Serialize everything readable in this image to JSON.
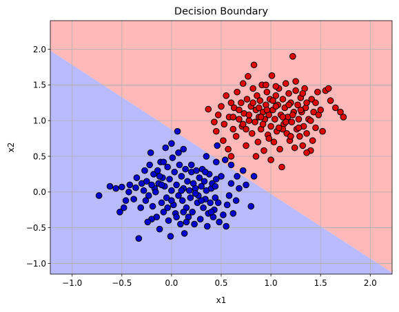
{
  "chart_data": {
    "type": "scatter",
    "title": "Decision Boundary",
    "xlabel": "x1",
    "ylabel": "x2",
    "xlim": [
      -1.22,
      2.22
    ],
    "ylim": [
      -1.15,
      2.4
    ],
    "xticks": [
      -1.0,
      -0.5,
      0.0,
      0.5,
      1.0,
      1.5,
      2.0
    ],
    "yticks": [
      -1.0,
      -0.5,
      0.0,
      0.5,
      1.0,
      1.5,
      2.0
    ],
    "xtick_labels": [
      "−1.0",
      "−0.5",
      "0.0",
      "0.5",
      "1.0",
      "1.5",
      "2.0"
    ],
    "ytick_labels": [
      "−1.0",
      "−0.5",
      "0.0",
      "0.5",
      "1.0",
      "1.5",
      "2.0"
    ],
    "grid": true,
    "decision_boundary": {
      "description": "linear boundary separating two classes",
      "x": [
        -1.22,
        2.22
      ],
      "y": [
        1.98,
        -1.13
      ],
      "region_above_color": "#ffb9b9",
      "region_below_color": "#babafe"
    },
    "series": [
      {
        "color": "#0000d0",
        "points": [
          [
            -0.73,
            -0.05
          ],
          [
            -0.62,
            0.08
          ],
          [
            -0.56,
            0.05
          ],
          [
            -0.52,
            -0.28
          ],
          [
            -0.5,
            0.07
          ],
          [
            -0.46,
            -0.12
          ],
          [
            -0.43,
            0.0
          ],
          [
            -0.42,
            0.1
          ],
          [
            -0.38,
            -0.1
          ],
          [
            -0.35,
            0.2
          ],
          [
            -0.33,
            -0.65
          ],
          [
            -0.31,
            -0.22
          ],
          [
            -0.3,
            0.12
          ],
          [
            -0.28,
            0.02
          ],
          [
            -0.27,
            0.3
          ],
          [
            -0.25,
            0.15
          ],
          [
            -0.23,
            -0.05
          ],
          [
            -0.22,
            0.38
          ],
          [
            -0.21,
            0.55
          ],
          [
            -0.19,
            -0.2
          ],
          [
            -0.18,
            0.25
          ],
          [
            -0.17,
            0.05
          ],
          [
            -0.15,
            -0.35
          ],
          [
            -0.14,
            0.3
          ],
          [
            -0.13,
            0.12
          ],
          [
            -0.12,
            -0.52
          ],
          [
            -0.11,
            0.42
          ],
          [
            -0.1,
            -0.15
          ],
          [
            -0.09,
            0.2
          ],
          [
            -0.08,
            -0.28
          ],
          [
            -0.07,
            0.08
          ],
          [
            -0.06,
            0.62
          ],
          [
            -0.05,
            -0.08
          ],
          [
            -0.04,
            0.35
          ],
          [
            -0.03,
            -0.4
          ],
          [
            -0.02,
            0.18
          ],
          [
            -0.01,
            -0.62
          ],
          [
            0.0,
            0.02
          ],
          [
            0.01,
            0.48
          ],
          [
            0.02,
            -0.18
          ],
          [
            0.03,
            0.28
          ],
          [
            0.04,
            -0.3
          ],
          [
            0.05,
            0.1
          ],
          [
            0.06,
            0.85
          ],
          [
            0.07,
            -0.05
          ],
          [
            0.08,
            0.38
          ],
          [
            0.09,
            -0.45
          ],
          [
            0.1,
            0.22
          ],
          [
            0.11,
            -0.12
          ],
          [
            0.12,
            0.05
          ],
          [
            0.13,
            -0.58
          ],
          [
            0.14,
            0.32
          ],
          [
            0.15,
            -0.22
          ],
          [
            0.16,
            0.15
          ],
          [
            0.17,
            -0.35
          ],
          [
            0.18,
            0.02
          ],
          [
            0.19,
            -0.08
          ],
          [
            0.2,
            0.28
          ],
          [
            0.21,
            -0.28
          ],
          [
            0.22,
            0.12
          ],
          [
            0.23,
            -0.45
          ],
          [
            0.24,
            0.05
          ],
          [
            0.25,
            0.3
          ],
          [
            0.26,
            -0.15
          ],
          [
            0.27,
            -0.05
          ],
          [
            0.28,
            0.2
          ],
          [
            0.29,
            -0.38
          ],
          [
            0.3,
            0.08
          ],
          [
            0.31,
            0.32
          ],
          [
            0.32,
            -0.22
          ],
          [
            0.33,
            0.15
          ],
          [
            0.34,
            -0.1
          ],
          [
            0.35,
            0.02
          ],
          [
            0.36,
            -0.48
          ],
          [
            0.37,
            -0.3
          ],
          [
            0.38,
            0.25
          ],
          [
            0.39,
            -0.15
          ],
          [
            0.4,
            0.05
          ],
          [
            0.41,
            0.12
          ],
          [
            0.42,
            -0.35
          ],
          [
            0.43,
            -0.25
          ],
          [
            0.44,
            0.08
          ],
          [
            0.45,
            0.18
          ],
          [
            0.46,
            0.65
          ],
          [
            0.47,
            -0.15
          ],
          [
            0.48,
            -0.42
          ],
          [
            0.5,
            0.22
          ],
          [
            0.52,
            -0.32
          ],
          [
            0.55,
            -0.48
          ],
          [
            0.58,
            -0.05
          ],
          [
            0.6,
            0.12
          ],
          [
            0.62,
            -0.3
          ],
          [
            0.65,
            -0.12
          ],
          [
            0.68,
            0.05
          ],
          [
            0.72,
            0.3
          ],
          [
            0.75,
            0.1
          ],
          [
            0.8,
            -0.2
          ],
          [
            0.83,
            0.22
          ],
          [
            -0.48,
            -0.22
          ],
          [
            -0.36,
            0.06
          ],
          [
            -0.26,
            -0.12
          ],
          [
            -0.16,
            0.0
          ],
          [
            -0.04,
            -0.22
          ],
          [
            0.0,
            0.68
          ],
          [
            -0.08,
            0.42
          ],
          [
            0.12,
            -0.28
          ],
          [
            0.2,
            0.38
          ],
          [
            0.24,
            -0.02
          ],
          [
            0.34,
            0.28
          ],
          [
            0.44,
            -0.08
          ],
          [
            0.56,
            -0.18
          ],
          [
            -0.2,
            -0.38
          ],
          [
            0.07,
            0.55
          ],
          [
            0.15,
            -0.42
          ],
          [
            -0.1,
            0.1
          ],
          [
            0.0,
            -0.12
          ],
          [
            0.1,
            0.02
          ],
          [
            -0.2,
            0.1
          ],
          [
            0.3,
            -0.12
          ],
          [
            0.4,
            -0.28
          ],
          [
            0.12,
            0.6
          ],
          [
            0.54,
            0.45
          ],
          [
            0.6,
            0.38
          ],
          [
            0.66,
            0.22
          ],
          [
            -0.24,
            -0.42
          ],
          [
            0.05,
            -0.35
          ],
          [
            0.35,
            0.5
          ],
          [
            0.45,
            0.42
          ],
          [
            -0.12,
            0.22
          ]
        ]
      },
      {
        "color": "#e00000",
        "points": [
          [
            0.37,
            1.16
          ],
          [
            0.45,
            0.85
          ],
          [
            0.47,
            1.08
          ],
          [
            0.5,
            1.2
          ],
          [
            0.52,
            0.72
          ],
          [
            0.53,
            0.95
          ],
          [
            0.55,
            1.35
          ],
          [
            0.57,
            0.6
          ],
          [
            0.58,
            1.05
          ],
          [
            0.6,
            1.25
          ],
          [
            0.62,
            0.88
          ],
          [
            0.63,
            1.18
          ],
          [
            0.65,
            0.78
          ],
          [
            0.66,
            1.4
          ],
          [
            0.68,
            1.02
          ],
          [
            0.7,
            1.25
          ],
          [
            0.71,
            0.92
          ],
          [
            0.72,
            1.52
          ],
          [
            0.73,
            1.1
          ],
          [
            0.75,
            0.65
          ],
          [
            0.76,
            1.3
          ],
          [
            0.77,
            1.62
          ],
          [
            0.78,
            1.0
          ],
          [
            0.8,
            1.2
          ],
          [
            0.81,
            0.82
          ],
          [
            0.82,
            1.45
          ],
          [
            0.83,
            1.78
          ],
          [
            0.84,
            0.98
          ],
          [
            0.85,
            1.15
          ],
          [
            0.86,
            1.35
          ],
          [
            0.87,
            0.7
          ],
          [
            0.88,
            1.05
          ],
          [
            0.89,
            1.28
          ],
          [
            0.9,
            0.88
          ],
          [
            0.91,
            1.5
          ],
          [
            0.92,
            1.12
          ],
          [
            0.93,
            0.58
          ],
          [
            0.94,
            1.02
          ],
          [
            0.95,
            1.22
          ],
          [
            0.96,
            1.4
          ],
          [
            0.97,
            0.8
          ],
          [
            0.98,
            1.08
          ],
          [
            0.99,
            1.3
          ],
          [
            1.0,
            0.92
          ],
          [
            1.01,
            1.63
          ],
          [
            1.02,
            1.15
          ],
          [
            1.03,
            0.7
          ],
          [
            1.04,
            1.02
          ],
          [
            1.05,
            1.35
          ],
          [
            1.06,
            0.85
          ],
          [
            1.07,
            1.22
          ],
          [
            1.08,
            1.45
          ],
          [
            1.09,
            0.6
          ],
          [
            1.1,
            1.08
          ],
          [
            1.11,
            0.35
          ],
          [
            1.12,
            1.3
          ],
          [
            1.13,
            0.95
          ],
          [
            1.14,
            1.18
          ],
          [
            1.15,
            1.52
          ],
          [
            1.16,
            0.82
          ],
          [
            1.17,
            1.05
          ],
          [
            1.18,
            1.38
          ],
          [
            1.19,
            0.72
          ],
          [
            1.2,
            1.25
          ],
          [
            1.21,
            0.98
          ],
          [
            1.22,
            1.9
          ],
          [
            1.23,
            1.12
          ],
          [
            1.24,
            0.62
          ],
          [
            1.25,
            1.42
          ],
          [
            1.26,
            0.88
          ],
          [
            1.27,
            1.22
          ],
          [
            1.28,
            1.02
          ],
          [
            1.29,
            0.78
          ],
          [
            1.3,
            1.32
          ],
          [
            1.31,
            1.12
          ],
          [
            1.32,
            0.65
          ],
          [
            1.33,
            0.92
          ],
          [
            1.34,
            1.45
          ],
          [
            1.35,
            1.18
          ],
          [
            1.36,
            0.82
          ],
          [
            1.38,
            1.02
          ],
          [
            1.4,
            0.58
          ],
          [
            1.41,
            1.3
          ],
          [
            1.42,
            0.72
          ],
          [
            1.43,
            1.12
          ],
          [
            1.45,
            0.9
          ],
          [
            1.47,
            1.4
          ],
          [
            1.48,
            1.08
          ],
          [
            1.5,
            1.15
          ],
          [
            1.52,
            0.85
          ],
          [
            1.55,
            1.42
          ],
          [
            1.58,
            1.45
          ],
          [
            1.6,
            1.28
          ],
          [
            1.65,
            1.18
          ],
          [
            1.7,
            1.12
          ],
          [
            1.73,
            1.05
          ],
          [
            0.43,
            0.98
          ],
          [
            0.6,
            0.5
          ],
          [
            0.85,
            0.5
          ],
          [
            1.0,
            0.45
          ],
          [
            0.72,
            0.95
          ],
          [
            1.12,
            0.88
          ],
          [
            0.95,
            1.5
          ],
          [
            1.25,
            1.55
          ],
          [
            0.88,
            1.18
          ],
          [
            1.05,
            1.2
          ],
          [
            1.15,
            0.98
          ],
          [
            0.78,
            1.08
          ],
          [
            1.36,
            1.25
          ],
          [
            0.92,
            0.95
          ],
          [
            1.22,
            1.08
          ],
          [
            1.4,
            1.0
          ],
          [
            0.68,
            1.15
          ],
          [
            1.08,
            0.9
          ],
          [
            1.3,
            1.15
          ],
          [
            0.98,
            0.75
          ],
          [
            1.18,
            1.22
          ],
          [
            1.05,
            1.48
          ],
          [
            0.82,
            1.25
          ],
          [
            1.28,
            0.9
          ],
          [
            1.36,
            0.55
          ],
          [
            1.45,
            1.25
          ],
          [
            1.02,
            1.28
          ],
          [
            0.9,
            1.05
          ],
          [
            1.12,
            1.05
          ],
          [
            0.62,
            1.05
          ],
          [
            1.32,
            1.38
          ],
          [
            0.75,
            0.88
          ],
          [
            1.2,
            0.78
          ],
          [
            0.96,
            1.15
          ]
        ]
      }
    ]
  }
}
